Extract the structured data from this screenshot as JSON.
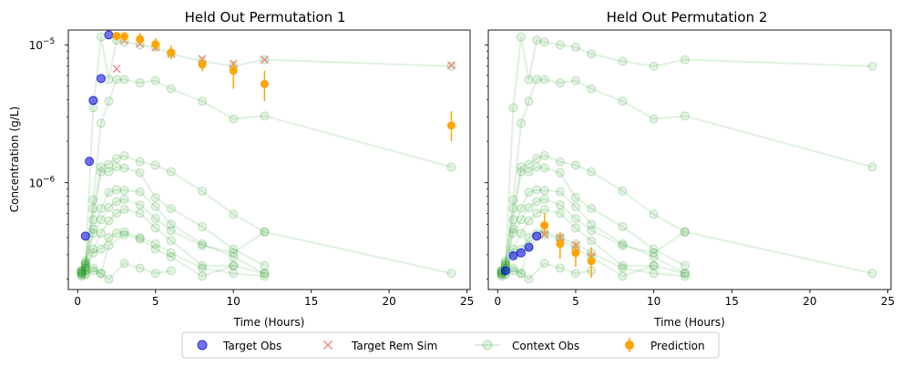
{
  "chart_data": {
    "type": "scatter",
    "yscale": "log",
    "ylabel": "Concentration (g/L)",
    "xlabel": "Time (Hours)",
    "xlim": [
      -0.6,
      25.2
    ],
    "ylim": [
      1.68e-07,
      1.28e-05
    ],
    "x_ticks": [
      0,
      5,
      10,
      15,
      20,
      25
    ],
    "x_tick_labels": [
      "0",
      "5",
      "10",
      "15",
      "20",
      "25"
    ],
    "y_major_ticks": [
      1e-06,
      1e-05
    ],
    "y_tick_labels": [
      {
        "base": "10",
        "exp": "−6"
      },
      {
        "base": "10",
        "exp": "−5"
      }
    ],
    "y_minor_ticks": [
      2e-07,
      3e-07,
      4e-07,
      5e-07,
      6e-07,
      7e-07,
      8e-07,
      9e-07,
      2e-06,
      3e-06,
      4e-06,
      5e-06,
      6e-06,
      7e-06,
      8e-06,
      9e-06
    ],
    "colors": {
      "target_obs": "#0000dd",
      "target_rem_sim": "#f08080",
      "context_obs": "#2ca02c",
      "prediction": "#ffa500",
      "axis": "#000000"
    },
    "legend": {
      "position": "bottom-center",
      "items": [
        {
          "label": "Target Obs",
          "kind": "target_obs"
        },
        {
          "label": "Target Rem Sim",
          "kind": "target_rem_sim"
        },
        {
          "label": "Context Obs",
          "kind": "context_obs"
        },
        {
          "label": "Prediction",
          "kind": "prediction"
        }
      ]
    },
    "context_curves": [
      {
        "x": [
          0.25,
          0.5,
          1,
          1.5,
          2,
          2.5,
          3,
          4,
          5,
          6,
          8,
          10,
          12,
          24
        ],
        "y": [
          2.2e-07,
          2.5e-07,
          3.5e-06,
          1.14e-05,
          5.6e-06,
          1.08e-05,
          1.05e-05,
          1e-05,
          9.6e-06,
          8.6e-06,
          7.6e-06,
          7e-06,
          7.8e-06,
          7e-06
        ]
      },
      {
        "x": [
          0.25,
          0.5,
          1,
          1.5,
          2,
          2.5,
          3,
          4,
          5,
          6,
          8,
          10,
          12,
          24
        ],
        "y": [
          2.3e-07,
          2.6e-07,
          7.5e-07,
          2.7e-06,
          3.9e-06,
          5.6e-06,
          5.6e-06,
          5.3e-06,
          5.5e-06,
          4.8e-06,
          3.9e-06,
          2.9e-06,
          3.05e-06,
          1.3e-06
        ]
      },
      {
        "x": [
          0.25,
          0.5,
          1,
          1.5,
          2,
          2.5,
          3,
          4,
          5,
          6,
          8,
          10,
          12,
          24
        ],
        "y": [
          2.25e-07,
          2.6e-07,
          6.5e-07,
          1.3e-06,
          1.36e-06,
          1.5e-06,
          1.57e-06,
          1.42e-06,
          1.34e-06,
          1.2e-06,
          8.7e-07,
          5.9e-07,
          4.4e-07,
          2.2e-07
        ]
      },
      {
        "x": [
          0.25,
          0.5,
          1,
          1.5,
          2,
          2.5,
          3,
          4,
          5,
          6,
          8,
          10,
          12
        ],
        "y": [
          2.3e-07,
          2.7e-07,
          5.4e-07,
          1.2e-06,
          1.2e-06,
          1.3e-06,
          1.28e-06,
          1.18e-06,
          7.8e-07,
          6.5e-07,
          4.8e-07,
          3.3e-07,
          2.5e-07
        ]
      },
      {
        "x": [
          0.25,
          0.5,
          1,
          1.5,
          2,
          2.5,
          3,
          4,
          5,
          6,
          8,
          10,
          12
        ],
        "y": [
          2.2e-07,
          2.4e-07,
          4.6e-07,
          6.5e-07,
          8.5e-07,
          8.9e-07,
          8.8e-07,
          8.6e-07,
          6.7e-07,
          5e-07,
          3.6e-07,
          2.9e-07,
          2.2e-07
        ]
      },
      {
        "x": [
          0.25,
          0.5,
          1,
          1.5,
          2,
          2.5,
          3,
          4,
          5,
          6,
          8,
          10,
          12
        ],
        "y": [
          2.3e-07,
          2.5e-07,
          4.3e-07,
          5.4e-07,
          6.6e-07,
          7.3e-07,
          7.6e-07,
          6.9e-07,
          5.5e-07,
          4.5e-07,
          3.5e-07,
          3.1e-07,
          4.4e-07
        ]
      },
      {
        "x": [
          0.25,
          0.5,
          1,
          1.5,
          2,
          2.5,
          3,
          4,
          5,
          6,
          8,
          10,
          12
        ],
        "y": [
          2.2e-07,
          2.4e-07,
          3.3e-07,
          4.3e-07,
          5.3e-07,
          6e-07,
          6.4e-07,
          6e-07,
          4.7e-07,
          3.8e-07,
          2.5e-07,
          2.5e-07,
          2.2e-07
        ]
      },
      {
        "x": [
          0.25,
          0.5,
          1,
          1.5,
          2,
          2.5,
          3,
          4,
          5,
          6,
          8,
          10,
          12
        ],
        "y": [
          2.15e-07,
          2.3e-07,
          3.1e-07,
          3.3e-07,
          4e-07,
          4.3e-07,
          4.4e-07,
          4e-07,
          3.6e-07,
          3.1e-07,
          2.4e-07,
          2.2e-07,
          2.1e-07
        ]
      },
      {
        "x": [
          0.25,
          0.5,
          1,
          1.5,
          2,
          3,
          4,
          5,
          6,
          8,
          10
        ],
        "y": [
          2.1e-07,
          2.2e-07,
          2.4e-07,
          2.2e-07,
          3.5e-07,
          4.2e-07,
          3.9e-07,
          3.3e-07,
          2.9e-07,
          2.1e-07,
          2.5e-07
        ]
      },
      {
        "x": [
          0.5,
          1,
          1.5,
          2,
          3,
          4,
          5,
          6
        ],
        "y": [
          2.15e-07,
          2.3e-07,
          2.2e-07,
          2e-07,
          2.6e-07,
          2.4e-07,
          2.2e-07,
          2.3e-07
        ]
      }
    ],
    "panels": [
      {
        "title": "Held Out Permutation 1",
        "show_y_tick_labels": true,
        "target_obs": {
          "x": [
            0.5,
            0.75,
            1,
            1.5,
            2
          ],
          "y": [
            4.1e-07,
            1.43e-06,
            3.95e-06,
            5.7e-06,
            1.18e-05
          ]
        },
        "target_rem_sim": {
          "x": [
            2.5,
            3,
            4,
            5,
            6,
            8,
            10,
            12,
            24
          ],
          "y": [
            6.7e-06,
            1.08e-05,
            1.02e-05,
            9.6e-06,
            8.6e-06,
            7.9e-06,
            7.3e-06,
            7.8e-06,
            7.1e-06
          ]
        },
        "prediction": {
          "x": [
            2.5,
            3,
            4,
            5,
            6,
            8,
            10,
            12,
            24
          ],
          "y": [
            1.16e-05,
            1.15e-05,
            1.1e-05,
            1.01e-05,
            8.8e-06,
            7.2e-06,
            6.5e-06,
            5.2e-06,
            2.6e-06
          ],
          "ylow": [
            1.08e-05,
            1.06e-05,
            1e-05,
            9.1e-06,
            7.9e-06,
            6.4e-06,
            4.8e-06,
            3.9e-06,
            2e-06
          ],
          "yhigh": [
            1.24e-05,
            1.24e-05,
            1.22e-05,
            1.12e-05,
            9.9e-06,
            8.1e-06,
            7.6e-06,
            6.5e-06,
            3.3e-06
          ]
        }
      },
      {
        "title": "Held Out Permutation 2",
        "show_y_tick_labels": false,
        "target_obs": {
          "x": [
            0.5,
            1,
            1.5,
            2,
            2.5
          ],
          "y": [
            2.3e-07,
            2.95e-07,
            3.1e-07,
            3.4e-07,
            4.1e-07
          ]
        },
        "target_rem_sim": {
          "x": [
            3,
            4,
            5,
            6
          ],
          "y": [
            4.2e-07,
            4e-07,
            3.5e-07,
            2.9e-07
          ]
        },
        "prediction": {
          "x": [
            3,
            4,
            5,
            6
          ],
          "y": [
            4.9e-07,
            3.6e-07,
            3.1e-07,
            2.7e-07
          ],
          "ylow": [
            4.1e-07,
            2.8e-07,
            2.45e-07,
            2.05e-07
          ],
          "yhigh": [
            6e-07,
            4.4e-07,
            3.75e-07,
            3.4e-07
          ]
        }
      }
    ]
  }
}
